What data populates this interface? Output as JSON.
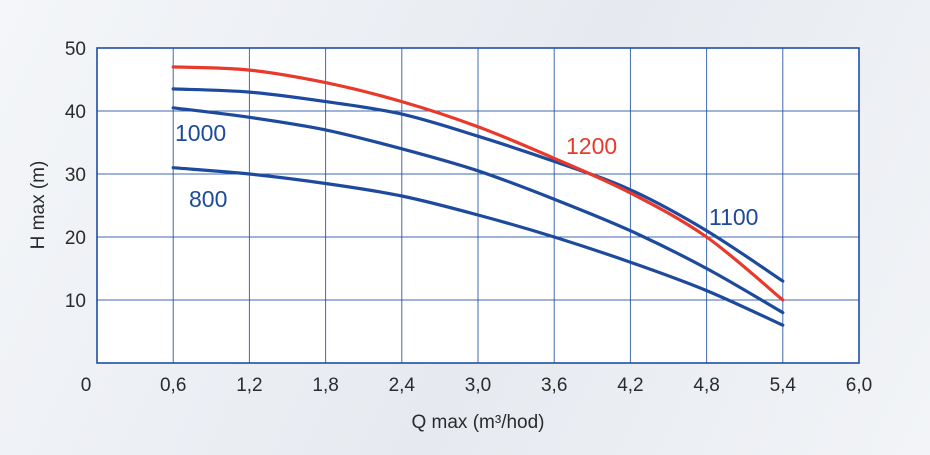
{
  "chart_data": {
    "type": "line",
    "xlabel": "Q max (m³/hod)",
    "ylabel": "H max (m)",
    "xlim": [
      0,
      6.0
    ],
    "ylim": [
      0,
      50
    ],
    "x_ticks": [
      "0",
      "0,6",
      "1,2",
      "1,8",
      "2,4",
      "3,0",
      "3,6",
      "4,2",
      "4,8",
      "5,4",
      "6,0"
    ],
    "y_ticks": [
      "10",
      "20",
      "30",
      "40",
      "50"
    ],
    "grid": true,
    "colors": {
      "frame": "#1e4fa3",
      "grid": "#1e4fa3",
      "blue_series": "#1d4a9c",
      "red_series": "#e8392b"
    },
    "series": [
      {
        "name": "800",
        "color": "#1d4a9c",
        "x": [
          0.6,
          1.2,
          1.8,
          2.4,
          3.0,
          3.6,
          4.2,
          4.8,
          5.4
        ],
        "y": [
          31,
          30,
          28.5,
          26.5,
          23.5,
          20,
          16,
          11.5,
          6
        ]
      },
      {
        "name": "1000",
        "color": "#1d4a9c",
        "x": [
          0.6,
          1.2,
          1.8,
          2.4,
          3.0,
          3.6,
          4.2,
          4.8,
          5.4
        ],
        "y": [
          40.5,
          39,
          37,
          34,
          30.5,
          26,
          21,
          15,
          8
        ]
      },
      {
        "name": "1100",
        "color": "#1d4a9c",
        "x": [
          0.6,
          1.2,
          1.8,
          2.4,
          3.0,
          3.6,
          4.2,
          4.8,
          5.4
        ],
        "y": [
          43.5,
          43,
          41.5,
          39.5,
          36,
          32,
          27.5,
          21,
          13
        ]
      },
      {
        "name": "1200",
        "color": "#e8392b",
        "x": [
          0.6,
          1.2,
          1.8,
          2.4,
          3.0,
          3.6,
          4.2,
          4.8,
          5.4
        ],
        "y": [
          47,
          46.5,
          44.5,
          41.5,
          37.5,
          32.5,
          27,
          20,
          10
        ]
      }
    ]
  }
}
